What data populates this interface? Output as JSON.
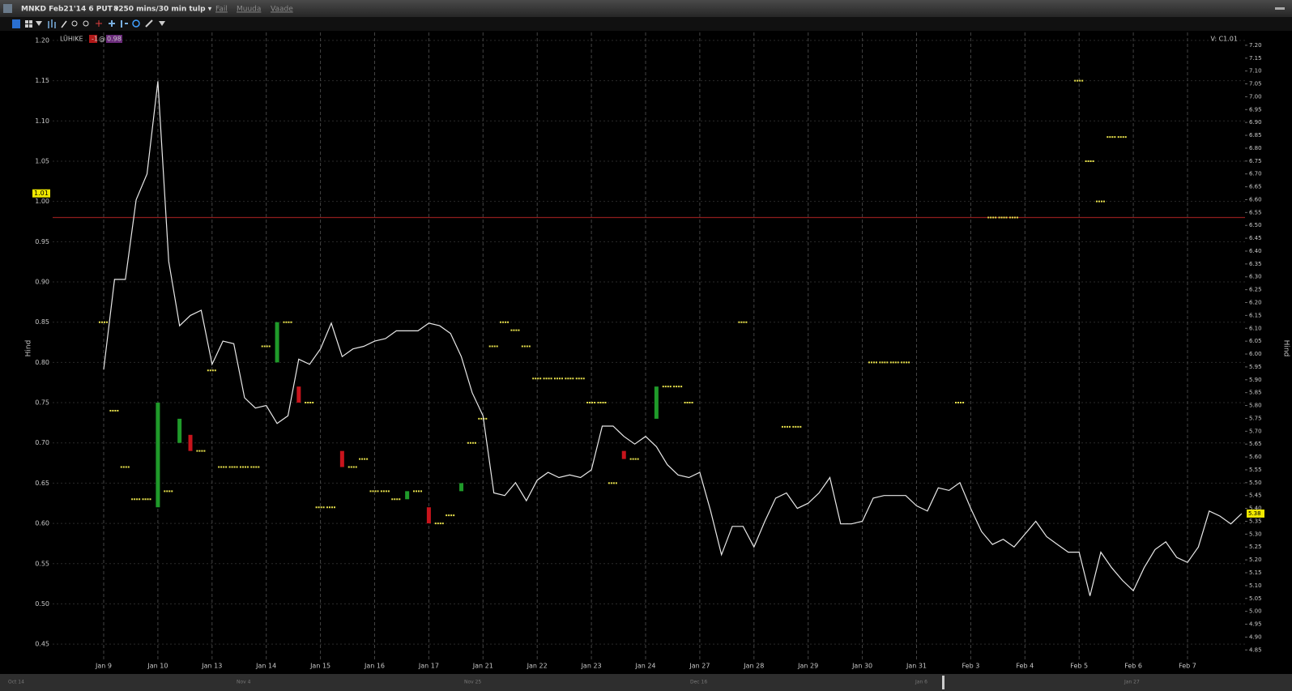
{
  "ui": {
    "symbol": "MNKD Feb21'14 6 PUT ▾",
    "period": "8250 mins/30 min tulp ▾",
    "menu": [
      "Fail",
      "Muuda",
      "Vaade"
    ],
    "navigator": [
      "Oct 14",
      "Nov 4",
      "Nov 25",
      "Dec 16",
      "Jan 6",
      "Jan 27"
    ]
  },
  "chart_data": {
    "type": "candlestick",
    "ylabel": "Hind",
    "y2label": "Hind",
    "legend": {
      "side": "LÜHIKE",
      "qty": -1,
      "at": "@",
      "price": 0.98
    },
    "corner_label": "V: C1.01",
    "left_marker": 1.01,
    "position_line": 0.98,
    "grid": true,
    "categories": [
      "Jan 9",
      null,
      null,
      null,
      null,
      "Jan 10",
      null,
      null,
      null,
      null,
      "Jan 13",
      null,
      null,
      null,
      null,
      "Jan 14",
      null,
      null,
      null,
      null,
      "Jan 15",
      null,
      null,
      null,
      null,
      "Jan 16",
      null,
      null,
      null,
      null,
      "Jan 17",
      null,
      null,
      null,
      null,
      "Jan 21",
      null,
      null,
      null,
      null,
      "Jan 22",
      null,
      null,
      null,
      null,
      "Jan 23",
      null,
      null,
      null,
      null,
      "Jan 24",
      null,
      null,
      null,
      null,
      "Jan 27",
      null,
      null,
      null,
      null,
      "Jan 28",
      null,
      null,
      null,
      null,
      "Jan 29",
      null,
      null,
      null,
      null,
      "Jan 30",
      null,
      null,
      null,
      null,
      "Jan 31",
      null,
      null,
      null,
      null,
      "Feb 3",
      null,
      null,
      null,
      null,
      "Feb 4",
      null,
      null,
      null,
      null,
      "Feb 5",
      null,
      null,
      null,
      null,
      "Feb 6",
      null,
      null,
      null,
      null,
      "Feb 7",
      null,
      null,
      null,
      null,
      null
    ],
    "series": [
      {
        "up_color": "#1f9a2a",
        "down_color": "#c8141c",
        "flat_color": "#e9e24c",
        "open": [
          0.85,
          0.74,
          0.67,
          0.63,
          0.63,
          0.62,
          0.64,
          0.7,
          0.71,
          0.69,
          0.79,
          0.67,
          0.67,
          0.67,
          0.67,
          0.82,
          0.8,
          0.85,
          0.77,
          0.75,
          0.62,
          0.62,
          0.69,
          0.67,
          0.68,
          0.64,
          0.64,
          0.63,
          0.63,
          0.64,
          0.62,
          0.6,
          0.61,
          0.64,
          0.7,
          0.73,
          0.82,
          0.85,
          0.84,
          0.82,
          0.78,
          0.78,
          0.78,
          0.78,
          0.78,
          0.75,
          0.75,
          0.65,
          0.69,
          0.68,
          null,
          0.73,
          0.77,
          0.77,
          0.75,
          null,
          null,
          null,
          null,
          0.85,
          null,
          null,
          null,
          0.72,
          0.72,
          null,
          null,
          null,
          null,
          null,
          null,
          0.8,
          0.8,
          0.8,
          0.8,
          null,
          null,
          null,
          null,
          0.75,
          null,
          null,
          0.98,
          0.98,
          0.98,
          null,
          null,
          null,
          null,
          null,
          1.15,
          1.05,
          1.0,
          1.08,
          1.08,
          null,
          null,
          null,
          null,
          null,
          null,
          null,
          null,
          null,
          null,
          null
        ],
        "values": [
          0.85,
          0.74,
          0.67,
          0.63,
          0.63,
          0.75,
          0.64,
          0.73,
          0.69,
          0.69,
          0.79,
          0.67,
          0.67,
          0.67,
          0.67,
          0.82,
          0.85,
          0.85,
          0.75,
          0.75,
          0.62,
          0.62,
          0.67,
          0.67,
          0.68,
          0.64,
          0.64,
          0.63,
          0.64,
          0.64,
          0.6,
          0.6,
          0.61,
          0.65,
          0.7,
          0.73,
          0.82,
          0.85,
          0.84,
          0.82,
          0.78,
          0.78,
          0.78,
          0.78,
          0.78,
          0.75,
          0.75,
          0.65,
          0.68,
          0.68,
          null,
          0.77,
          0.77,
          0.77,
          0.75,
          null,
          null,
          null,
          null,
          0.85,
          null,
          null,
          null,
          0.72,
          0.72,
          null,
          null,
          null,
          null,
          null,
          null,
          0.8,
          0.8,
          0.8,
          0.8,
          null,
          null,
          null,
          null,
          0.75,
          null,
          null,
          0.98,
          0.98,
          0.98,
          null,
          null,
          null,
          null,
          null,
          1.15,
          1.05,
          1.0,
          1.08,
          1.08,
          null,
          null,
          null,
          null,
          null,
          null,
          null,
          null,
          null,
          null,
          null
        ]
      },
      {
        "type": "line",
        "axis": "y2",
        "color": "#e8e8e8",
        "values": [
          5.94,
          6.29,
          6.29,
          6.6,
          6.7,
          7.06,
          6.36,
          6.11,
          6.15,
          6.17,
          5.96,
          6.05,
          6.04,
          5.83,
          5.79,
          5.8,
          5.73,
          5.76,
          5.98,
          5.96,
          6.02,
          6.12,
          5.99,
          6.02,
          6.03,
          6.05,
          6.06,
          6.09,
          6.09,
          6.09,
          6.12,
          6.11,
          6.08,
          5.99,
          5.85,
          5.76,
          5.46,
          5.45,
          5.5,
          5.43,
          5.51,
          5.54,
          5.52,
          5.53,
          5.52,
          5.55,
          5.72,
          5.72,
          5.68,
          5.65,
          5.68,
          5.64,
          5.57,
          5.53,
          5.52,
          5.54,
          5.39,
          5.22,
          5.33,
          5.33,
          5.25,
          5.35,
          5.44,
          5.46,
          5.4,
          5.42,
          5.46,
          5.52,
          5.34,
          5.34,
          5.35,
          5.44,
          5.45,
          5.45,
          5.45,
          5.41,
          5.39,
          5.48,
          5.47,
          5.5,
          5.4,
          5.31,
          5.26,
          5.28,
          5.25,
          5.3,
          5.35,
          5.29,
          5.26,
          5.23,
          5.23,
          5.06,
          5.23,
          5.17,
          5.12,
          5.08,
          5.17,
          5.24,
          5.27,
          5.21,
          5.19,
          5.25,
          5.39,
          5.37,
          5.34,
          5.38
        ]
      }
    ],
    "ylim": [
      0.43,
      1.21
    ],
    "yticks": [
      {
        "value": 1.2,
        "label": "1.20"
      },
      1.15,
      {
        "value": 1.1,
        "label": "1.10"
      },
      1.05,
      {
        "value": 1.0,
        "label": "1.00"
      },
      0.95,
      {
        "value": 0.9,
        "label": "0.90"
      },
      0.85,
      {
        "value": 0.8,
        "label": "0.80"
      },
      0.75,
      {
        "value": 0.7,
        "label": "0.70"
      },
      0.65,
      {
        "value": 0.6,
        "label": "0.60"
      },
      0.55,
      {
        "value": 0.5,
        "label": "0.50"
      },
      0.45
    ],
    "y2lim": [
      4.81,
      7.25
    ],
    "y2ticks": [
      {
        "value": 7.2,
        "label": "7.20"
      },
      7.15,
      {
        "value": 7.1,
        "label": "7.10"
      },
      7.05,
      {
        "value": 7.0,
        "label": "7.00"
      },
      6.95,
      {
        "value": 6.9,
        "label": "6.90"
      },
      6.85,
      {
        "value": 6.8,
        "label": "6.80"
      },
      6.75,
      {
        "value": 6.7,
        "label": "6.70"
      },
      6.65,
      {
        "value": 6.6,
        "label": "6.60"
      },
      6.55,
      {
        "value": 6.5,
        "label": "6.50"
      },
      6.45,
      {
        "value": 6.4,
        "label": "6.40"
      },
      6.35,
      {
        "value": 6.3,
        "label": "6.30"
      },
      6.25,
      {
        "value": 6.2,
        "label": "6.20"
      },
      6.15,
      {
        "value": 6.1,
        "label": "6.10"
      },
      6.05,
      {
        "value": 6.0,
        "label": "6.00"
      },
      5.95,
      {
        "value": 5.9,
        "label": "5.90"
      },
      5.85,
      {
        "value": 5.8,
        "label": "5.80"
      },
      5.75,
      {
        "value": 5.7,
        "label": "5.70"
      },
      5.65,
      {
        "value": 5.6,
        "label": "5.60"
      },
      5.55,
      {
        "value": 5.5,
        "label": "5.50"
      },
      5.45,
      {
        "value": 5.4,
        "label": "5.40"
      },
      5.35,
      {
        "value": 5.3,
        "label": "5.30"
      },
      5.25,
      {
        "value": 5.2,
        "label": "5.20"
      },
      5.15,
      {
        "value": 5.1,
        "label": "5.10"
      },
      5.05,
      {
        "value": 5.0,
        "label": "5.00"
      },
      4.95,
      {
        "value": 4.9,
        "label": "4.90"
      },
      4.85
    ]
  }
}
